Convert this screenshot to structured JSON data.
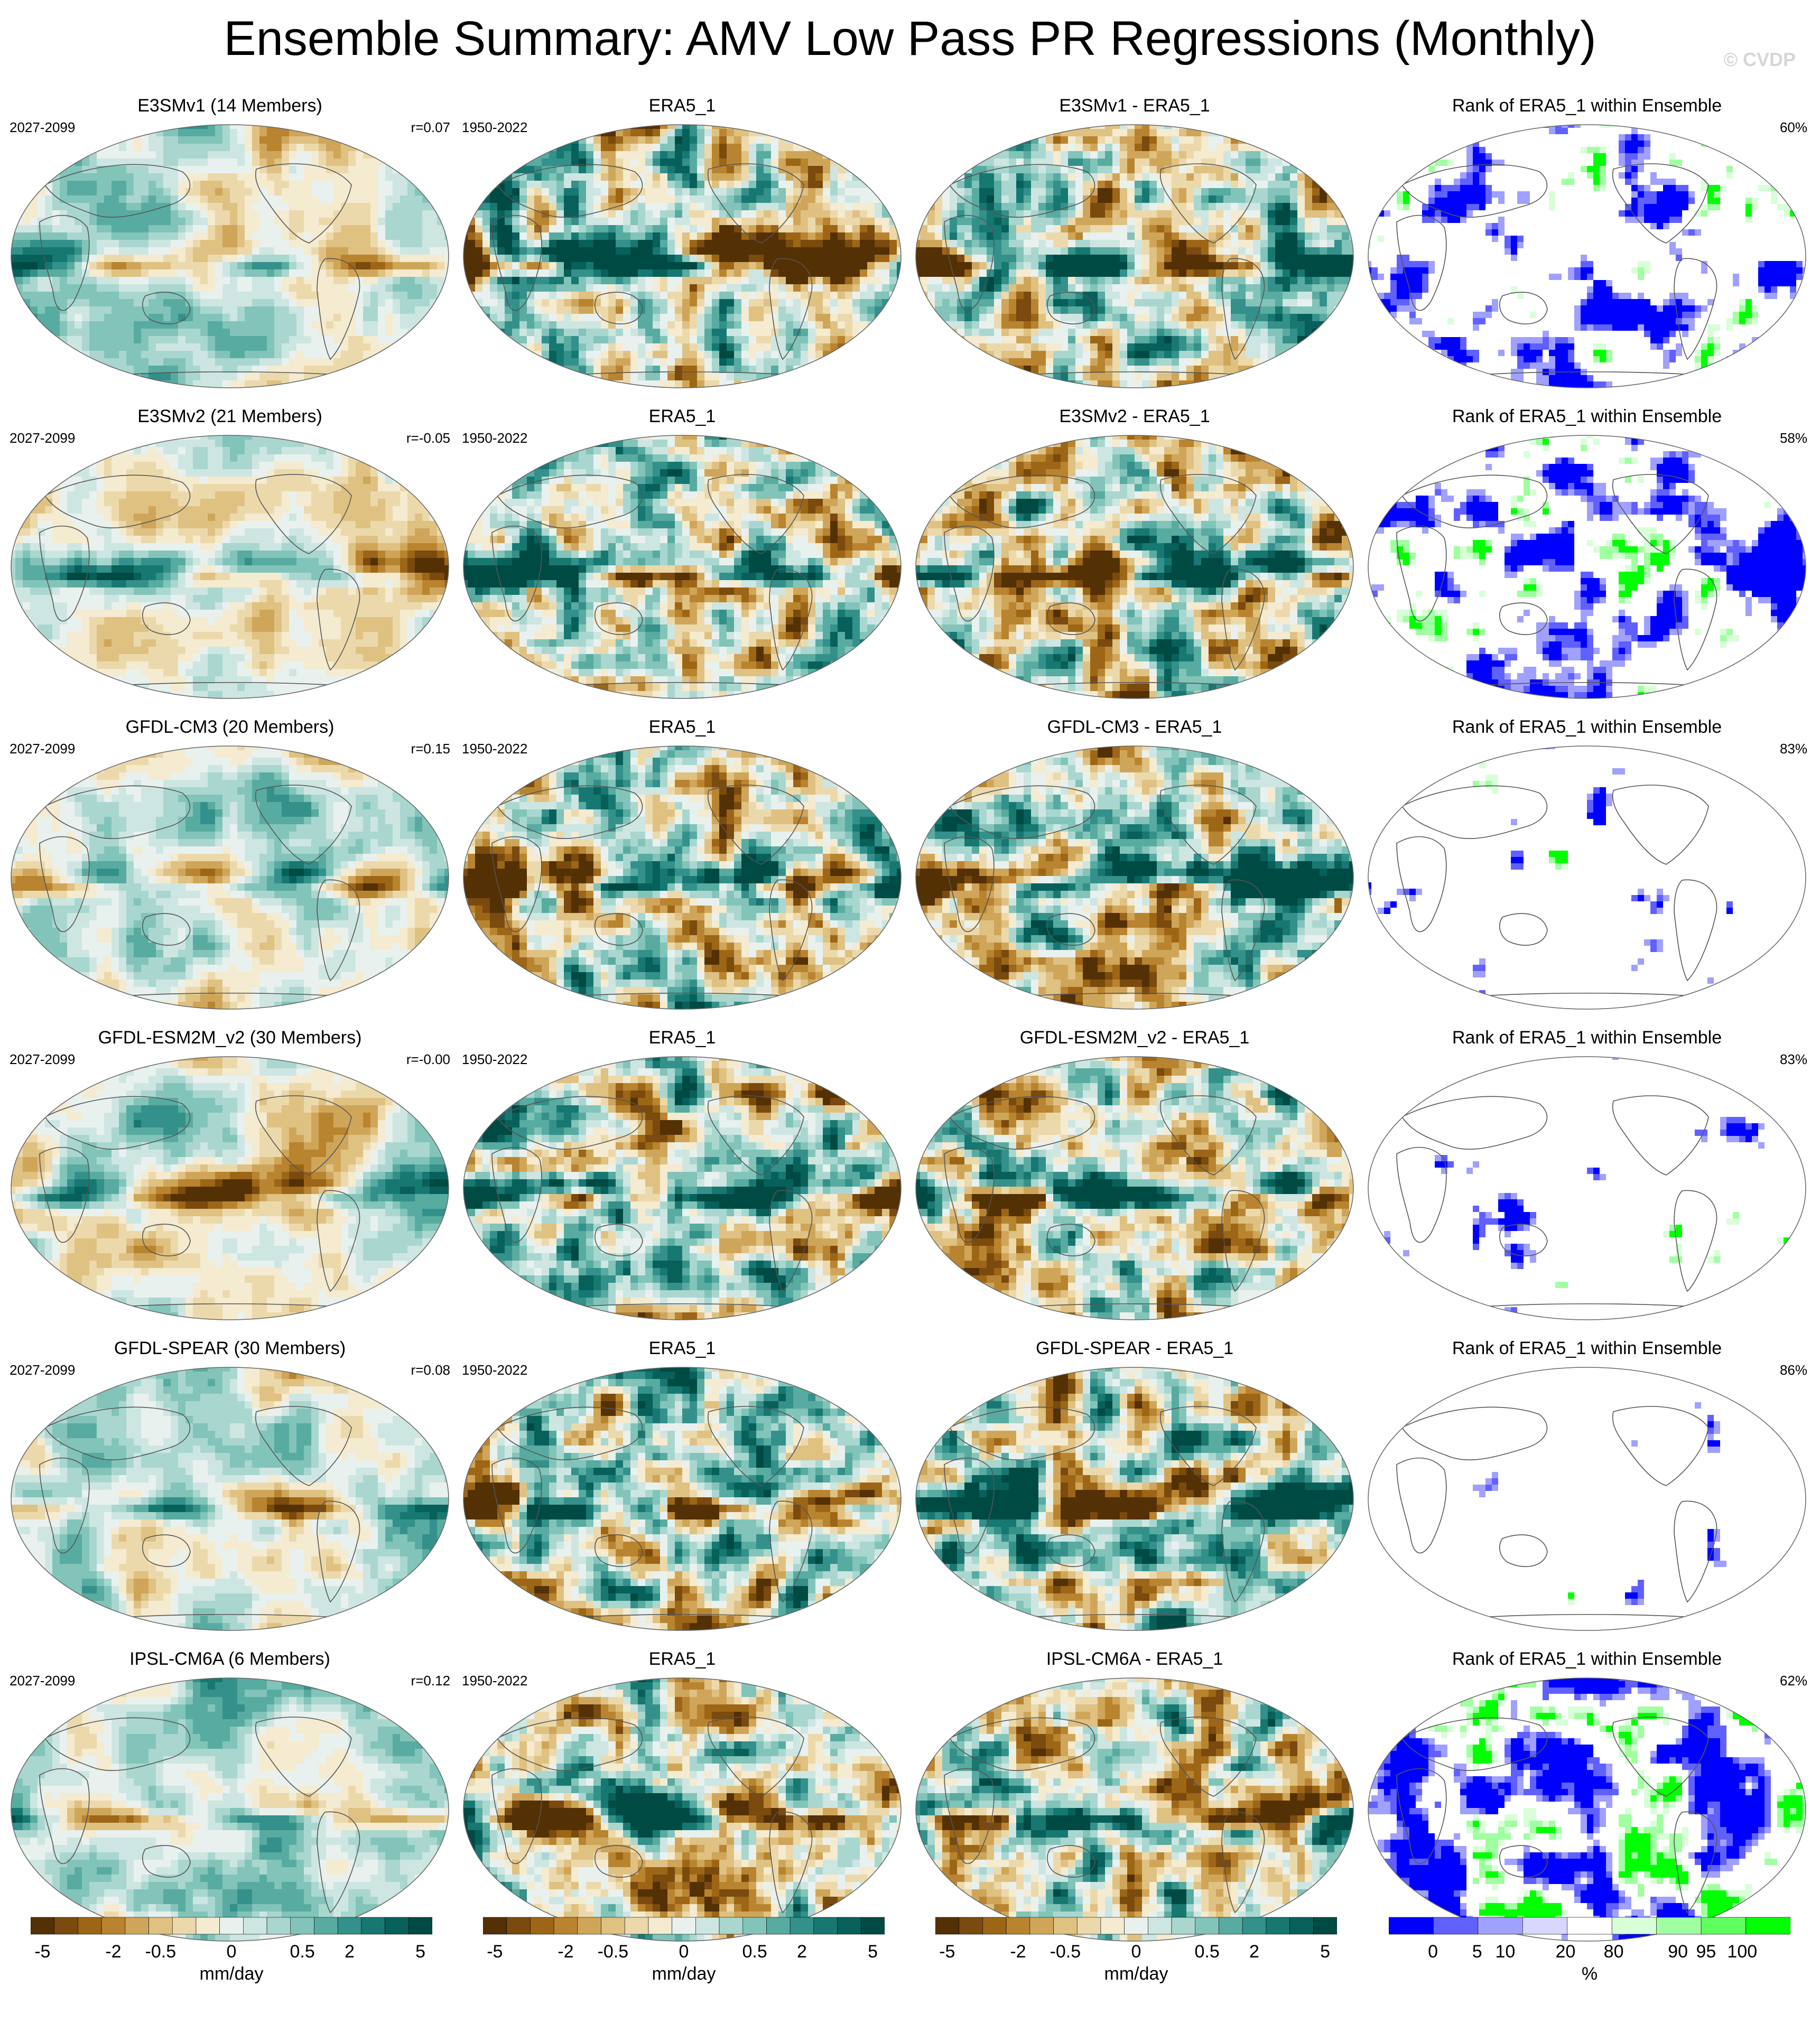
{
  "title": "Ensemble Summary: AMV Low Pass PR Regressions (Monthly)",
  "watermark": "© CVDP",
  "colors": {
    "brown_green_scale": [
      "#543005",
      "#7a4a0e",
      "#9c6616",
      "#b98430",
      "#cfa659",
      "#dfc182",
      "#ecd9ab",
      "#f4ebd0",
      "#e9f1ef",
      "#cde6e2",
      "#a9d7d0",
      "#82c4b9",
      "#58aba0",
      "#34908a",
      "#177872",
      "#08605b",
      "#004a44"
    ],
    "rank_scale": [
      "#0000ff",
      "#6060ff",
      "#a0a0ff",
      "#d8d8ff",
      "#ffffff",
      "#d8ffd8",
      "#a0ffa0",
      "#60ff60",
      "#00ff00"
    ]
  },
  "rows": [
    {
      "model": {
        "title": "E3SMv1 (14 Members)",
        "period": "2027-2099",
        "r": "r=0.07"
      },
      "obs": {
        "title": "ERA5_1",
        "period": "1950-2022"
      },
      "diff": {
        "title": "E3SMv1 - ERA5_1"
      },
      "rank": {
        "title": "Rank of ERA5_1 within Ensemble",
        "pct": "60%"
      }
    },
    {
      "model": {
        "title": "E3SMv2 (21 Members)",
        "period": "2027-2099",
        "r": "r=-0.05"
      },
      "obs": {
        "title": "ERA5_1",
        "period": "1950-2022"
      },
      "diff": {
        "title": "E3SMv2 - ERA5_1"
      },
      "rank": {
        "title": "Rank of ERA5_1 within Ensemble",
        "pct": "58%"
      }
    },
    {
      "model": {
        "title": "GFDL-CM3 (20 Members)",
        "period": "2027-2099",
        "r": "r=0.15"
      },
      "obs": {
        "title": "ERA5_1",
        "period": "1950-2022"
      },
      "diff": {
        "title": "GFDL-CM3 - ERA5_1"
      },
      "rank": {
        "title": "Rank of ERA5_1 within Ensemble",
        "pct": "83%"
      }
    },
    {
      "model": {
        "title": "GFDL-ESM2M_v2 (30 Members)",
        "period": "2027-2099",
        "r": "r=-0.00"
      },
      "obs": {
        "title": "ERA5_1",
        "period": "1950-2022"
      },
      "diff": {
        "title": "GFDL-ESM2M_v2 - ERA5_1"
      },
      "rank": {
        "title": "Rank of ERA5_1 within Ensemble",
        "pct": "83%"
      }
    },
    {
      "model": {
        "title": "GFDL-SPEAR (30 Members)",
        "period": "2027-2099",
        "r": "r=0.08"
      },
      "obs": {
        "title": "ERA5_1",
        "period": "1950-2022"
      },
      "diff": {
        "title": "GFDL-SPEAR - ERA5_1"
      },
      "rank": {
        "title": "Rank of ERA5_1 within Ensemble",
        "pct": "86%"
      }
    },
    {
      "model": {
        "title": "IPSL-CM6A (6 Members)",
        "period": "2027-2099",
        "r": "r=0.12"
      },
      "obs": {
        "title": "ERA5_1",
        "period": "1950-2022"
      },
      "diff": {
        "title": "IPSL-CM6A - ERA5_1"
      },
      "rank": {
        "title": "Rank of ERA5_1 within Ensemble",
        "pct": "62%"
      }
    }
  ],
  "colorbars": {
    "pr": {
      "ticks": [
        "-5",
        "-2",
        "-0.5",
        "0",
        "0.5",
        "2",
        "5"
      ],
      "unit": "mm/day"
    },
    "rank": {
      "ticks": [
        "0",
        "5",
        "10",
        "20",
        "80",
        "90",
        "95",
        "100"
      ],
      "unit": "%"
    }
  },
  "chart_data": {
    "type": "heatmap",
    "projection": "Robinson (global)",
    "variable": "PR",
    "units": "mm/day",
    "contour_levels": [
      -5,
      -4,
      -3,
      -2,
      -1,
      -0.5,
      -0.2,
      0,
      0.2,
      0.5,
      1,
      2,
      3,
      4,
      5
    ],
    "rank_levels": [
      0,
      5,
      10,
      20,
      80,
      90,
      95,
      100
    ],
    "grid": "4 columns x 6 rows",
    "pattern_correlations": [
      0.07,
      -0.05,
      0.15,
      -0.0,
      0.08,
      0.12
    ],
    "rank_percent": [
      60,
      58,
      83,
      83,
      86,
      62
    ]
  }
}
